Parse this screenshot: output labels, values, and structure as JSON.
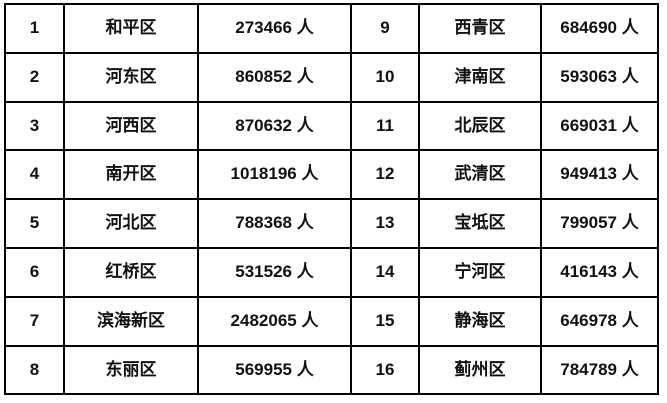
{
  "table": {
    "description_not_invented": "",
    "unit": "人",
    "rows": [
      {
        "n1": "1",
        "d1": "和平区",
        "p1": "273466 人",
        "n2": "9",
        "d2": "西青区",
        "p2": "684690 人"
      },
      {
        "n1": "2",
        "d1": "河东区",
        "p1": "860852 人",
        "n2": "10",
        "d2": "津南区",
        "p2": "593063 人"
      },
      {
        "n1": "3",
        "d1": "河西区",
        "p1": "870632 人",
        "n2": "11",
        "d2": "北辰区",
        "p2": "669031 人"
      },
      {
        "n1": "4",
        "d1": "南开区",
        "p1": "1018196 人",
        "n2": "12",
        "d2": "武清区",
        "p2": "949413 人"
      },
      {
        "n1": "5",
        "d1": "河北区",
        "p1": "788368 人",
        "n2": "13",
        "d2": "宝坻区",
        "p2": "799057 人"
      },
      {
        "n1": "6",
        "d1": "红桥区",
        "p1": "531526 人",
        "n2": "14",
        "d2": "宁河区",
        "p2": "416143 人"
      },
      {
        "n1": "7",
        "d1": "滨海新区",
        "p1": "2482065 人",
        "n2": "15",
        "d2": "静海区",
        "p2": "646978 人"
      },
      {
        "n1": "8",
        "d1": "东丽区",
        "p1": "569955 人",
        "n2": "16",
        "d2": "蓟州区",
        "p2": "784789 人"
      }
    ]
  },
  "chart_data": {
    "type": "table",
    "records": [
      {
        "rank": 1,
        "district": "和平区",
        "population": 273466
      },
      {
        "rank": 2,
        "district": "河东区",
        "population": 860852
      },
      {
        "rank": 3,
        "district": "河西区",
        "population": 870632
      },
      {
        "rank": 4,
        "district": "南开区",
        "population": 1018196
      },
      {
        "rank": 5,
        "district": "河北区",
        "population": 788368
      },
      {
        "rank": 6,
        "district": "红桥区",
        "population": 531526
      },
      {
        "rank": 7,
        "district": "滨海新区",
        "population": 2482065
      },
      {
        "rank": 8,
        "district": "东丽区",
        "population": 569955
      },
      {
        "rank": 9,
        "district": "西青区",
        "population": 684690
      },
      {
        "rank": 10,
        "district": "津南区",
        "population": 593063
      },
      {
        "rank": 11,
        "district": "北辰区",
        "population": 669031
      },
      {
        "rank": 12,
        "district": "武清区",
        "population": 949413
      },
      {
        "rank": 13,
        "district": "宝坻区",
        "population": 799057
      },
      {
        "rank": 14,
        "district": "宁河区",
        "population": 416143
      },
      {
        "rank": 15,
        "district": "静海区",
        "population": 646978
      },
      {
        "rank": 16,
        "district": "蓟州区",
        "population": 784789
      }
    ],
    "unit": "人",
    "colors": {
      "border": "#000000",
      "text": "#111111",
      "background": "#ffffff"
    }
  }
}
